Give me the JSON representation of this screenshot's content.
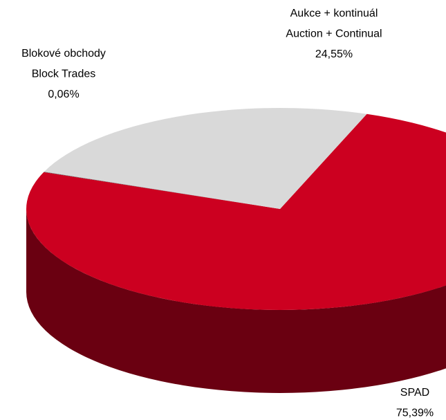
{
  "chart_data": {
    "type": "pie",
    "categories": [
      [
        "SPAD"
      ],
      [
        "Aukce + kontinuál",
        "Auction + Continual"
      ],
      [
        "Blokové obchody",
        "Block Trades"
      ]
    ],
    "values": [
      75.39,
      24.55,
      0.06
    ],
    "value_labels": [
      "75,39%",
      "24,55%",
      "0,06%"
    ],
    "colors": [
      "#cc0020",
      "#d9d9d9",
      "#666666"
    ]
  }
}
